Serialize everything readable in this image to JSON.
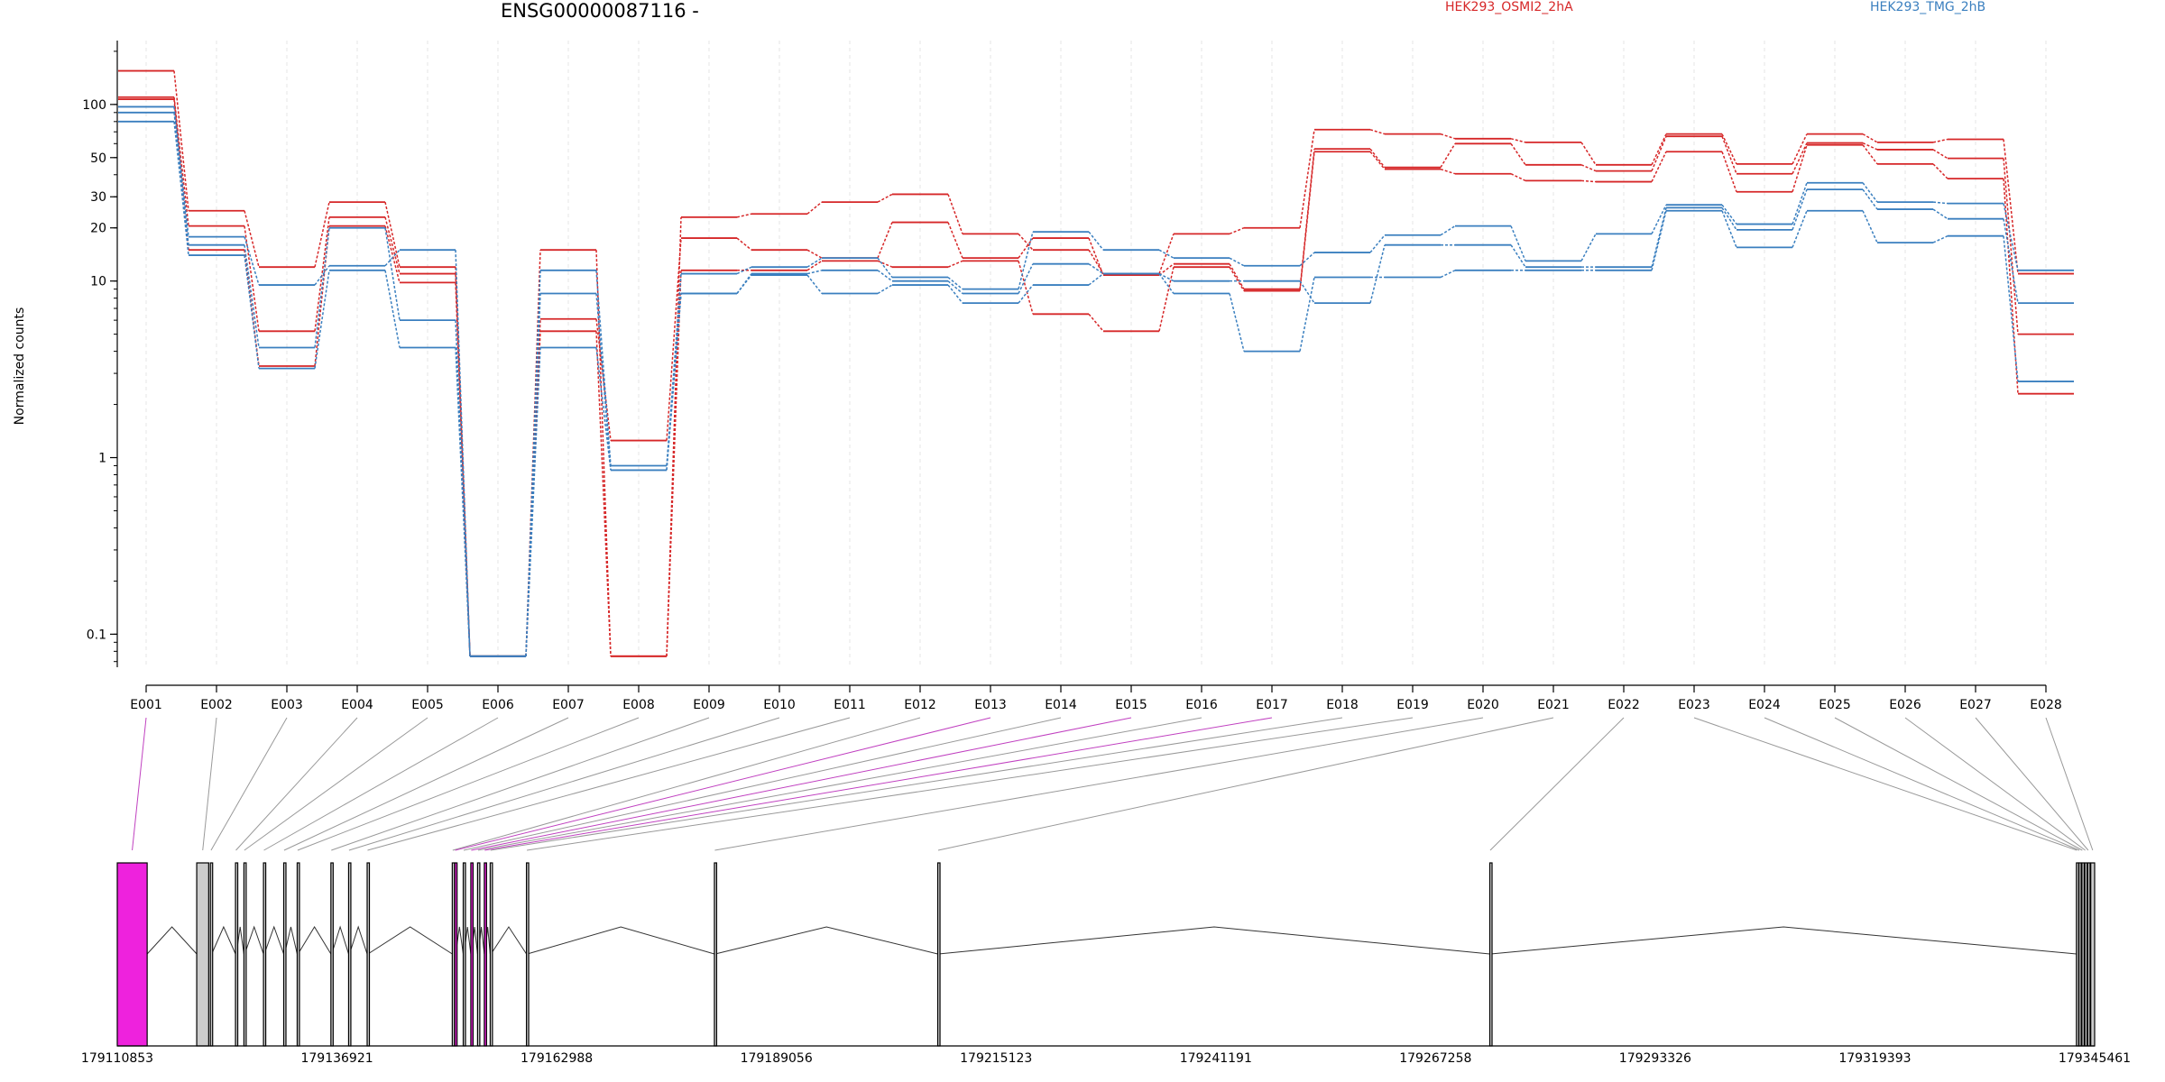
{
  "header": {
    "title": "ENSG00000087116 -",
    "legend": [
      {
        "label": "HEK293_OSMI2_2hA",
        "color": "#d62728"
      },
      {
        "label": "HEK293_TMG_2hB",
        "color": "#3a7fbf"
      }
    ]
  },
  "chart_data": {
    "type": "line",
    "title": "ENSG00000087116 -",
    "ylabel": "Normalized counts",
    "yscale": "log",
    "ylim": [
      0.065,
      230
    ],
    "yticks": [
      {
        "value": 0.1,
        "label": "0.1"
      },
      {
        "value": 1,
        "label": "1"
      },
      {
        "value": 10,
        "label": "10"
      },
      {
        "value": 20,
        "label": "20"
      },
      {
        "value": 30,
        "label": "30"
      },
      {
        "value": 50,
        "label": "50"
      },
      {
        "value": 100,
        "label": "100"
      }
    ],
    "categories": [
      "E001",
      "E002",
      "E003",
      "E004",
      "E005",
      "E006",
      "E007",
      "E008",
      "E009",
      "E010",
      "E011",
      "E012",
      "E013",
      "E014",
      "E015",
      "E016",
      "E017",
      "E018",
      "E019",
      "E020",
      "E021",
      "E022",
      "E023",
      "E024",
      "E025",
      "E026",
      "E027",
      "E028"
    ],
    "grid": true,
    "colors": {
      "red": "#d62728",
      "blue": "#3a7fbf",
      "exon_highlight": "#ee22dd",
      "exon_plain": "#cccccc",
      "connector_highlight": "#c040c0",
      "connector_plain": "#999999"
    },
    "series": [
      {
        "color": "#d62728",
        "values": [
          155,
          25,
          12,
          28,
          12,
          0.075,
          15,
          0.075,
          23,
          24,
          28,
          31,
          18.5,
          15,
          11,
          18.5,
          20,
          72,
          68,
          64,
          61,
          45.5,
          68,
          46,
          68,
          61,
          63.5,
          11
        ]
      },
      {
        "color": "#d62728",
        "values": [
          110,
          20.5,
          5.2,
          23,
          11,
          0.075,
          6.1,
          1.25,
          17.5,
          15,
          13.5,
          21.5,
          13.5,
          17.5,
          10.8,
          12.5,
          9,
          56,
          44,
          60,
          45.5,
          42,
          66,
          40.5,
          60.5,
          55.5,
          49.5,
          5
        ]
      },
      {
        "color": "#d62728",
        "values": [
          107,
          15,
          3.3,
          20.5,
          9.8,
          0.075,
          5.2,
          0.075,
          11.5,
          11.5,
          13,
          12,
          13,
          6.5,
          5.2,
          12,
          8.8,
          54,
          43,
          40.5,
          37,
          36.5,
          54,
          32,
          59,
          46,
          38,
          2.3
        ]
      },
      {
        "color": "#3a7fbf",
        "values": [
          97,
          17.8,
          9.5,
          12.2,
          15,
          0.075,
          11.5,
          0.9,
          11,
          12,
          13.5,
          10.5,
          9,
          19,
          15,
          13.5,
          12.2,
          14.5,
          18.2,
          20.5,
          13,
          18.5,
          27,
          21,
          36,
          28,
          27.5,
          11.5
        ]
      },
      {
        "color": "#3a7fbf",
        "values": [
          90,
          16,
          4.2,
          20,
          6,
          0.075,
          4.2,
          0.85,
          8.5,
          11,
          11.5,
          10,
          8.5,
          12.5,
          11,
          10,
          10,
          7.5,
          16,
          16,
          12,
          12,
          26,
          19.5,
          33,
          25.5,
          22.5,
          7.5
        ]
      },
      {
        "color": "#3a7fbf",
        "values": [
          80,
          14,
          3.2,
          11.5,
          4.2,
          0.075,
          8.5,
          0.85,
          8.5,
          10.8,
          8.5,
          9.5,
          7.5,
          9.5,
          11,
          8.5,
          4,
          10.5,
          10.5,
          11.5,
          11.5,
          11.5,
          25,
          15.5,
          25,
          16.5,
          18,
          2.7
        ]
      }
    ],
    "genome": {
      "start": 179110853,
      "end": 179345461,
      "axis_labels": [
        "179110853",
        "179136921",
        "179162988",
        "179189056",
        "179215123",
        "179241191",
        "179267258",
        "179293326",
        "179319393",
        "179345461"
      ],
      "exons": [
        {
          "id": "E001",
          "highlight": true,
          "start": 179110853,
          "end": 179114400
        },
        {
          "id": "E002",
          "highlight": false,
          "start": 179120280,
          "end": 179121700
        },
        {
          "id": "E003",
          "highlight": false,
          "start": 179121900,
          "end": 179122060
        },
        {
          "id": "E004",
          "highlight": false,
          "start": 179124880,
          "end": 179124980
        },
        {
          "id": "E005",
          "highlight": false,
          "start": 179125880,
          "end": 179125980
        },
        {
          "id": "E006",
          "highlight": false,
          "start": 179128200,
          "end": 179128300
        },
        {
          "id": "E007",
          "highlight": false,
          "start": 179130600,
          "end": 179130700
        },
        {
          "id": "E008",
          "highlight": false,
          "start": 179132200,
          "end": 179132300
        },
        {
          "id": "E009",
          "highlight": false,
          "start": 179136200,
          "end": 179136300
        },
        {
          "id": "E010",
          "highlight": false,
          "start": 179138300,
          "end": 179138400
        },
        {
          "id": "E011",
          "highlight": false,
          "start": 179140500,
          "end": 179140600
        },
        {
          "id": "E012",
          "highlight": false,
          "start": 179150600,
          "end": 179150700
        },
        {
          "id": "E013",
          "highlight": true,
          "start": 179150900,
          "end": 179151000
        },
        {
          "id": "E014",
          "highlight": false,
          "start": 179151900,
          "end": 179152000
        },
        {
          "id": "E015",
          "highlight": true,
          "start": 179152800,
          "end": 179152900
        },
        {
          "id": "E016",
          "highlight": false,
          "start": 179153600,
          "end": 179153700
        },
        {
          "id": "E017",
          "highlight": true,
          "start": 179154400,
          "end": 179154500
        },
        {
          "id": "E018",
          "highlight": false,
          "start": 179155100,
          "end": 179155200
        },
        {
          "id": "E019",
          "highlight": false,
          "start": 179159400,
          "end": 179159500
        },
        {
          "id": "E020",
          "highlight": false,
          "start": 179181700,
          "end": 179181800
        },
        {
          "id": "E021",
          "highlight": false,
          "start": 179208200,
          "end": 179208300
        },
        {
          "id": "E022",
          "highlight": false,
          "start": 179273700,
          "end": 179273800
        },
        {
          "id": "E023",
          "highlight": false,
          "start": 179343300,
          "end": 179343400
        },
        {
          "id": "E024",
          "highlight": false,
          "start": 179343600,
          "end": 179343700
        },
        {
          "id": "E025",
          "highlight": false,
          "start": 179343950,
          "end": 179344050
        },
        {
          "id": "E026",
          "highlight": false,
          "start": 179344300,
          "end": 179344400
        },
        {
          "id": "E027",
          "highlight": false,
          "start": 179344650,
          "end": 179344750
        },
        {
          "id": "E028",
          "highlight": false,
          "start": 179345000,
          "end": 179345461
        }
      ]
    }
  }
}
